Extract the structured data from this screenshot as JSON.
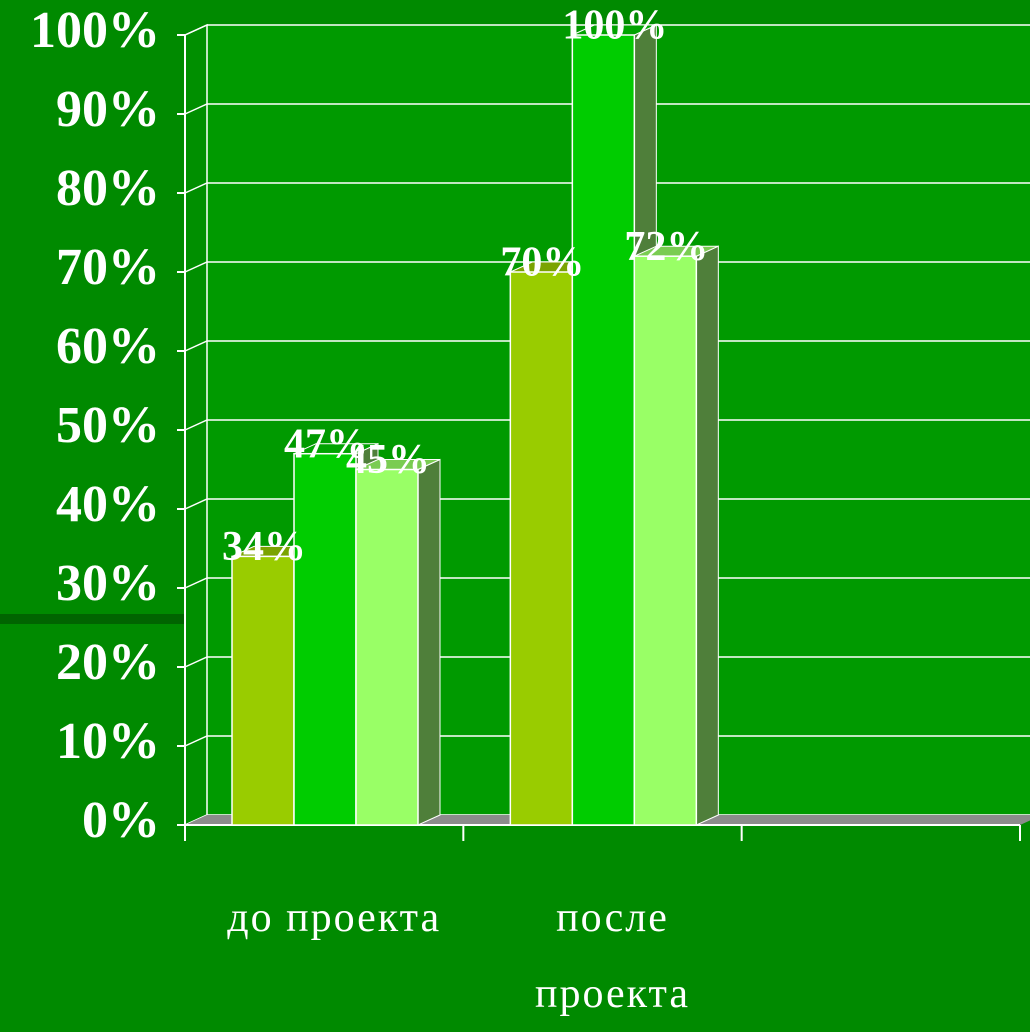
{
  "chart_data": {
    "type": "bar3d",
    "categories": [
      "до проекта",
      "после проекта",
      null
    ],
    "series": [
      {
        "color": "#99cc00",
        "values": [
          34,
          70,
          null
        ],
        "value_labels": [
          "34%",
          "70%",
          null
        ]
      },
      {
        "color": "#00cc00",
        "values": [
          47,
          100,
          null
        ],
        "value_labels": [
          "47%",
          "100%",
          null
        ]
      },
      {
        "color": "#99ff66",
        "values": [
          45,
          72,
          null
        ],
        "value_labels": [
          "45%",
          "72%",
          null
        ]
      }
    ],
    "ylim": [
      0,
      100
    ],
    "yticks": [
      {
        "value": 0,
        "label": "0%"
      },
      {
        "value": 10,
        "label": "10%"
      },
      {
        "value": 20,
        "label": "20%"
      },
      {
        "value": 30,
        "label": "30%"
      },
      {
        "value": 40,
        "label": "40%"
      },
      {
        "value": 50,
        "label": "50%"
      },
      {
        "value": 60,
        "label": "60%"
      },
      {
        "value": 70,
        "label": "70%"
      },
      {
        "value": 80,
        "label": "80%"
      },
      {
        "value": 90,
        "label": "90%"
      },
      {
        "value": 100,
        "label": "100%"
      }
    ],
    "grid": true
  }
}
